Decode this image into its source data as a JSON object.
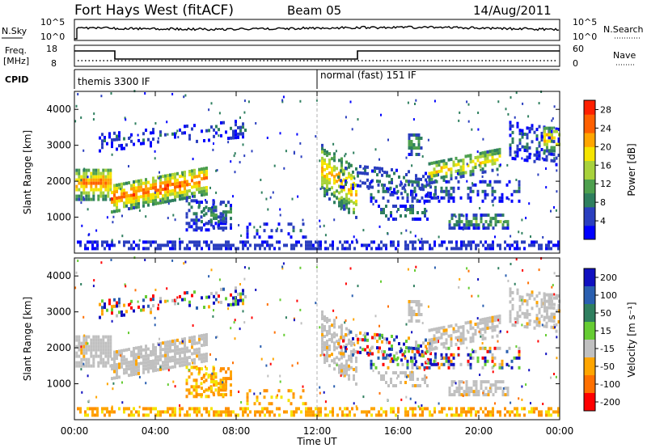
{
  "header": {
    "station": "Fort Hays West (fitACF)",
    "beam": "Beam 05",
    "date": "14/Aug/2011"
  },
  "top_panels": {
    "left_label_nsky": "N.Sky",
    "right_label_nsearch": "N.Search",
    "nsky_ticks": [
      "10^5",
      "10^0"
    ],
    "nsearch_ticks": [
      "10^5",
      "10^0"
    ],
    "freq_label": [
      "Freq.",
      "[MHz]"
    ],
    "freq_ticks": [
      "18",
      "8"
    ],
    "nave_label": "Nave",
    "nave_ticks": [
      "60",
      "0"
    ],
    "cpid_label": "CPID",
    "cpid_modes": [
      {
        "name": "themis 3300 IF",
        "start_hour": 0
      },
      {
        "name": "normal (fast) 151 IF",
        "start_hour": 12
      }
    ]
  },
  "chart_data": [
    {
      "type": "heatmap",
      "title": "Power",
      "xlabel": "Time UT",
      "ylabel": "Slant Range [km]",
      "x_range_hours": [
        0,
        24
      ],
      "x_ticks": [
        "00:00",
        "04:00",
        "08:00",
        "12:00",
        "16:00",
        "20:00",
        "00:00"
      ],
      "ylim": [
        0,
        4500
      ],
      "y_ticks": [
        1000,
        2000,
        3000,
        4000
      ],
      "colorbar_label": "Power [dB]",
      "colorbar_ticks": [
        4,
        8,
        12,
        16,
        20,
        24,
        28
      ],
      "colorbar_range": [
        0,
        30
      ],
      "colors": [
        "#0000ff",
        "#2b3fbf",
        "#2f7f5f",
        "#4ea04e",
        "#a8d23c",
        "#f5e400",
        "#ffa500",
        "#ff6000",
        "#ff2000"
      ]
    },
    {
      "type": "heatmap",
      "title": "Velocity",
      "xlabel": "Time UT",
      "ylabel": "Slant Range [km]",
      "x_range_hours": [
        0,
        24
      ],
      "x_ticks": [
        "00:00",
        "04:00",
        "08:00",
        "12:00",
        "16:00",
        "20:00",
        "00:00"
      ],
      "ylim": [
        0,
        4500
      ],
      "y_ticks": [
        1000,
        2000,
        3000,
        4000
      ],
      "colorbar_label": "Velocity [m s⁻¹]",
      "colorbar_ticks": [
        200,
        100,
        50,
        15,
        -15,
        -50,
        -100,
        -200
      ],
      "colors": [
        "#1010c0",
        "#2a5fb0",
        "#2f7f5f",
        "#66cc33",
        "#c0c0c0",
        "#ffa500",
        "#ff7000",
        "#ff0000"
      ]
    }
  ]
}
